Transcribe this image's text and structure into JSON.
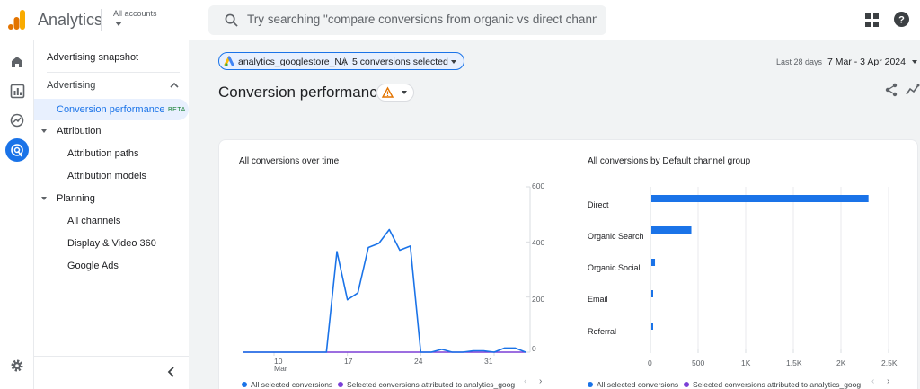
{
  "app": {
    "title": "Analytics",
    "accounts_label": "All accounts"
  },
  "search": {
    "placeholder": "Try searching \"compare conversions from organic vs direct channels\""
  },
  "nav": {
    "snapshot": "Advertising snapshot",
    "advertising": "Advertising",
    "conversion_performance": "Conversion performance",
    "beta": "BETA",
    "attribution": "Attribution",
    "attribution_paths": "Attribution paths",
    "attribution_models": "Attribution models",
    "planning": "Planning",
    "all_channels": "All channels",
    "display_video": "Display & Video 360",
    "google_ads": "Google Ads"
  },
  "filter": {
    "property": "analytics_googlestore_NA",
    "conversions": "5 conversions selected"
  },
  "date": {
    "label": "Last 28 days",
    "range": "7 Mar - 3 Apr 2024"
  },
  "page_title": "Conversion performance",
  "colors": {
    "primary": "#1a73e8",
    "secondary": "#7b3fd6",
    "warning": "#e37400"
  },
  "chart_data": [
    {
      "type": "line",
      "title": "All conversions over time",
      "x": [
        "7 Mar",
        "8 Mar",
        "9 Mar",
        "10 Mar",
        "11 Mar",
        "12 Mar",
        "13 Mar",
        "14 Mar",
        "15 Mar",
        "16 Mar",
        "17 Mar",
        "18 Mar",
        "19 Mar",
        "20 Mar",
        "21 Mar",
        "22 Mar",
        "23 Mar",
        "24 Mar",
        "25 Mar",
        "26 Mar",
        "27 Mar",
        "28 Mar",
        "29 Mar",
        "30 Mar",
        "31 Mar",
        "1 Apr",
        "2 Apr",
        "3 Apr"
      ],
      "x_tick_labels": [
        {
          "label": "10",
          "sub": "Mar",
          "index": 3
        },
        {
          "label": "17",
          "index": 10
        },
        {
          "label": "24",
          "index": 17
        },
        {
          "label": "31",
          "index": 24
        }
      ],
      "series": [
        {
          "name": "All selected conversions",
          "color": "#1a73e8",
          "values": [
            0,
            0,
            0,
            0,
            0,
            0,
            0,
            0,
            0,
            365,
            190,
            215,
            380,
            395,
            445,
            370,
            385,
            0,
            0,
            10,
            0,
            0,
            5,
            5,
            0,
            15,
            15,
            0
          ]
        },
        {
          "name": "Selected conversions attributed to analytics_goog",
          "color": "#7b3fd6",
          "values": [
            0,
            0,
            0,
            0,
            0,
            0,
            0,
            0,
            0,
            0,
            0,
            0,
            0,
            0,
            0,
            0,
            0,
            0,
            0,
            0,
            0,
            0,
            0,
            0,
            0,
            0,
            0,
            0
          ]
        }
      ],
      "ylim": [
        0,
        600
      ],
      "y_ticks": [
        "0",
        "200",
        "400",
        "600"
      ],
      "grid": false
    },
    {
      "type": "bar",
      "orientation": "horizontal",
      "title": "All conversions by Default channel group",
      "categories": [
        "Direct",
        "Organic Search",
        "Organic Social",
        "Email",
        "Referral"
      ],
      "values": [
        2280,
        420,
        38,
        10,
        10
      ],
      "xlim": [
        0,
        2500
      ],
      "x_ticks": [
        "0",
        "500",
        "1K",
        "1.5K",
        "2K",
        "2.5K"
      ],
      "color": "#1a73e8",
      "grid": "vertical",
      "legend": [
        "All selected conversions",
        "Selected conversions attributed to analytics_goog"
      ]
    }
  ]
}
